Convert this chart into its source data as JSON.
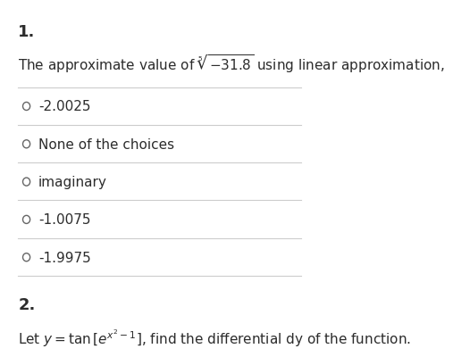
{
  "bg_color": "#ffffff",
  "text_color": "#2c2c2c",
  "q1_number": "1.",
  "q1_line": "The approximate value of $\\sqrt[5]{-31.8}$ using linear approximation,",
  "choices": [
    "-2.0025",
    "None of the choices",
    "imaginary",
    "-1.0075",
    "-1.9975"
  ],
  "q2_number": "2.",
  "q2_line": "Let $y = \\tan\\left[e^{x^2-1}\\right]$, find the differential dy of the function.",
  "divider_color": "#cccccc",
  "circle_color": "#666666",
  "number_fontsize": 13,
  "text_fontsize": 11,
  "choice_fontsize": 11
}
